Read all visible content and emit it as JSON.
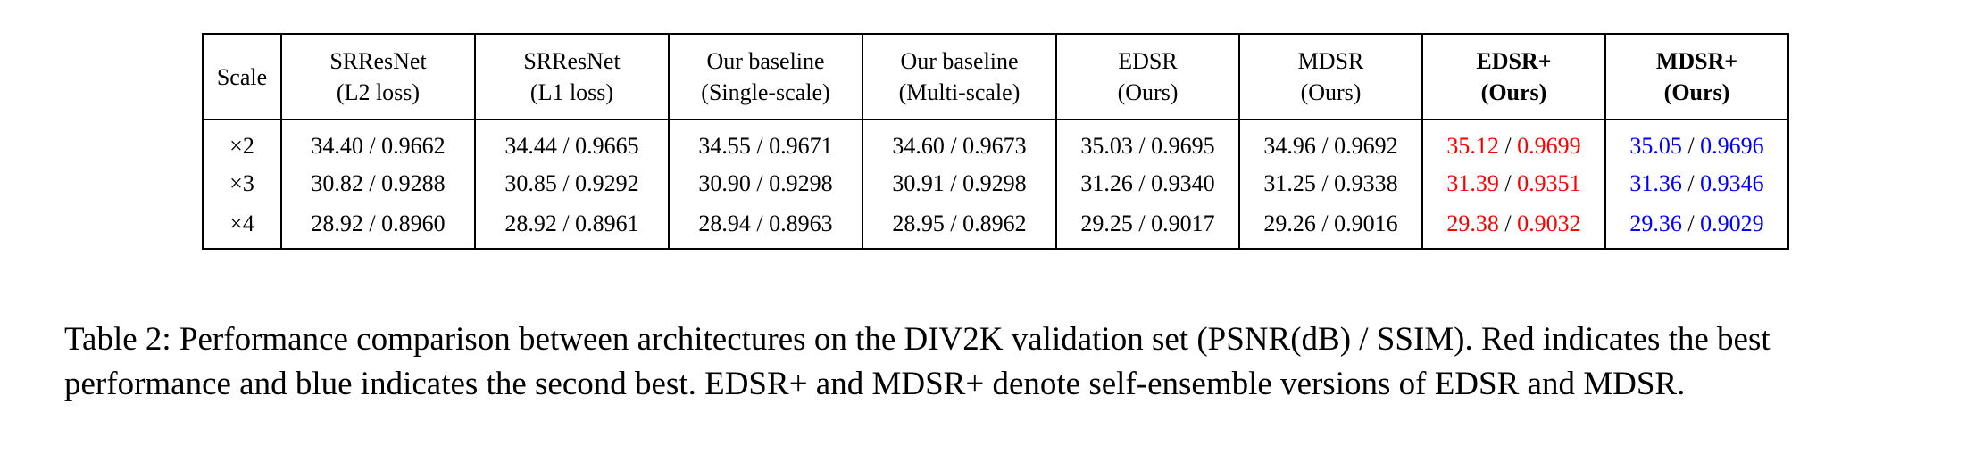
{
  "table": {
    "headers": [
      {
        "line1": "Scale",
        "line2": "",
        "bold": false
      },
      {
        "line1": "SRResNet",
        "line2": "(L2 loss)",
        "bold": false
      },
      {
        "line1": "SRResNet",
        "line2": "(L1 loss)",
        "bold": false
      },
      {
        "line1": "Our baseline",
        "line2": "(Single-scale)",
        "bold": false
      },
      {
        "line1": "Our baseline",
        "line2": "(Multi-scale)",
        "bold": false
      },
      {
        "line1": "EDSR",
        "line2": "(Ours)",
        "bold": false
      },
      {
        "line1": "MDSR",
        "line2": "(Ours)",
        "bold": false
      },
      {
        "line1": "EDSR+",
        "line2": "(Ours)",
        "bold": true
      },
      {
        "line1": "MDSR+",
        "line2": "(Ours)",
        "bold": true
      }
    ],
    "rows": [
      {
        "scale": "×2",
        "cells": [
          {
            "psnr": "34.40",
            "ssim": "0.9662",
            "highlight": ""
          },
          {
            "psnr": "34.44",
            "ssim": "0.9665",
            "highlight": ""
          },
          {
            "psnr": "34.55",
            "ssim": "0.9671",
            "highlight": ""
          },
          {
            "psnr": "34.60",
            "ssim": "0.9673",
            "highlight": ""
          },
          {
            "psnr": "35.03",
            "ssim": "0.9695",
            "highlight": ""
          },
          {
            "psnr": "34.96",
            "ssim": "0.9692",
            "highlight": ""
          },
          {
            "psnr": "35.12",
            "ssim": "0.9699",
            "highlight": "red"
          },
          {
            "psnr": "35.05",
            "ssim": "0.9696",
            "highlight": "blue"
          }
        ]
      },
      {
        "scale": "×3",
        "cells": [
          {
            "psnr": "30.82",
            "ssim": "0.9288",
            "highlight": ""
          },
          {
            "psnr": "30.85",
            "ssim": "0.9292",
            "highlight": ""
          },
          {
            "psnr": "30.90",
            "ssim": "0.9298",
            "highlight": ""
          },
          {
            "psnr": "30.91",
            "ssim": "0.9298",
            "highlight": ""
          },
          {
            "psnr": "31.26",
            "ssim": "0.9340",
            "highlight": ""
          },
          {
            "psnr": "31.25",
            "ssim": "0.9338",
            "highlight": ""
          },
          {
            "psnr": "31.39",
            "ssim": "0.9351",
            "highlight": "red"
          },
          {
            "psnr": "31.36",
            "ssim": "0.9346",
            "highlight": "blue"
          }
        ]
      },
      {
        "scale": "×4",
        "cells": [
          {
            "psnr": "28.92",
            "ssim": "0.8960",
            "highlight": ""
          },
          {
            "psnr": "28.92",
            "ssim": "0.8961",
            "highlight": ""
          },
          {
            "psnr": "28.94",
            "ssim": "0.8963",
            "highlight": ""
          },
          {
            "psnr": "28.95",
            "ssim": "0.8962",
            "highlight": ""
          },
          {
            "psnr": "29.25",
            "ssim": "0.9017",
            "highlight": ""
          },
          {
            "psnr": "29.26",
            "ssim": "0.9016",
            "highlight": ""
          },
          {
            "psnr": "29.38",
            "ssim": "0.9032",
            "highlight": "red"
          },
          {
            "psnr": "29.36",
            "ssim": "0.9029",
            "highlight": "blue"
          }
        ]
      }
    ]
  },
  "caption": "Table 2: Performance comparison between architectures on the DIV2K validation set (PSNR(dB) / SSIM). Red indicates the best performance and blue indicates the second best. EDSR+ and MDSR+ denote self-ensemble versions of EDSR and MDSR.",
  "colors": {
    "best": "#ff0000",
    "second_best": "#0000ff"
  }
}
